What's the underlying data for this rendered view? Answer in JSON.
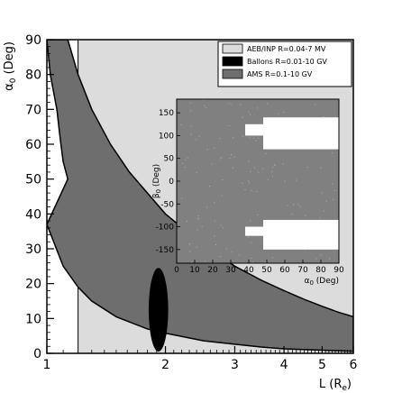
{
  "chart_data": {
    "type": "area",
    "x_scale": "log",
    "xlim": [
      1,
      6
    ],
    "ylim": [
      0,
      90
    ],
    "xlabel": "L (R",
    "xlabel_sub": "e",
    "xlabel_close": ")",
    "ylabel": "α",
    "ylabel_sub": "0",
    "ylabel_unit": " (Deg)",
    "x_ticks": [
      {
        "value": 1,
        "label": "1"
      },
      {
        "value": 2,
        "label": "2"
      },
      {
        "value": 3,
        "label": "3"
      },
      {
        "value": 4,
        "label": "4"
      },
      {
        "value": 5,
        "label": "5"
      },
      {
        "value": 6,
        "label": "6"
      }
    ],
    "y_ticks": [
      {
        "value": 0,
        "label": "0"
      },
      {
        "value": 10,
        "label": "10"
      },
      {
        "value": 20,
        "label": "20"
      },
      {
        "value": 30,
        "label": "30"
      },
      {
        "value": 40,
        "label": "40"
      },
      {
        "value": 50,
        "label": "50"
      },
      {
        "value": 60,
        "label": "60"
      },
      {
        "value": 70,
        "label": "70"
      },
      {
        "value": 80,
        "label": "80"
      },
      {
        "value": 90,
        "label": "90"
      }
    ],
    "colors": {
      "aeb": "#dcdcdc",
      "balloons": "#000000",
      "ams": "#6e6e6e",
      "background": "#ffffff"
    },
    "series": [
      {
        "name": "AEB/INP R=0.04-7 MV",
        "kind": "band",
        "x_from": 1.2,
        "x_to": 6,
        "y_from": 0,
        "y_to": 90
      },
      {
        "name": "AMS      R=0.1-10 GV",
        "kind": "band_between_curves",
        "upper": [
          [
            1.13,
            90
          ],
          [
            1.2,
            80
          ],
          [
            1.3,
            70
          ],
          [
            1.45,
            60
          ],
          [
            1.62,
            52
          ],
          [
            1.8,
            46
          ],
          [
            2,
            40
          ],
          [
            2.5,
            31
          ],
          [
            3,
            25
          ],
          [
            3.5,
            21
          ],
          [
            4,
            18
          ],
          [
            4.5,
            15.5
          ],
          [
            5,
            13.5
          ],
          [
            5.5,
            11.8
          ],
          [
            6,
            10.5
          ]
        ],
        "lower": [
          [
            1,
            37
          ],
          [
            1.1,
            25
          ],
          [
            1.2,
            19
          ],
          [
            1.3,
            15
          ],
          [
            1.5,
            10.5
          ],
          [
            1.8,
            7
          ],
          [
            2,
            5.8
          ],
          [
            2.5,
            3.6
          ],
          [
            3,
            2.6
          ],
          [
            3.5,
            1.8
          ],
          [
            4,
            1.3
          ],
          [
            5,
            0.9
          ],
          [
            6,
            0.6
          ]
        ],
        "upper_inner_edge": [
          [
            1,
            90
          ],
          [
            1.02,
            80
          ],
          [
            1.06,
            70
          ],
          [
            1.08,
            62
          ],
          [
            1.1,
            55
          ],
          [
            1.13,
            50
          ]
        ]
      },
      {
        "name": "Ballons R=0.01-10 GV",
        "kind": "ellipse",
        "cx": 1.92,
        "cy": 12.5,
        "x_half_width_log": 0.057,
        "y_half_height": 12
      }
    ],
    "legend": {
      "position": "top-right",
      "entries": [
        {
          "label": "AEB/INP R=0.04-7 MV",
          "color": "#dcdcdc"
        },
        {
          "label": "Ballons  R=0.01-10 GV",
          "color": "#000000"
        },
        {
          "label": "AMS      R=0.1-10 GV",
          "color": "#6e6e6e"
        }
      ]
    },
    "inset": {
      "type": "heatmap",
      "xlabel": "α",
      "xlabel_sub": "0",
      "xlabel_unit": " (Deg)",
      "ylabel": "β",
      "ylabel_sub": "0",
      "ylabel_unit": " (Deg)",
      "xlim": [
        0,
        90
      ],
      "ylim": [
        -180,
        180
      ],
      "x_ticks": [
        "0",
        "10",
        "20",
        "30",
        "40",
        "50",
        "60",
        "70",
        "80",
        "90"
      ],
      "y_ticks": [
        "-150",
        "-100",
        "-50",
        "0",
        "50",
        "100",
        "150"
      ],
      "excluded_regions": [
        {
          "alpha_from": 38,
          "alpha_to": 48,
          "beta_from": 100,
          "beta_to": 125
        },
        {
          "alpha_from": 48,
          "alpha_to": 90,
          "beta_from": 70,
          "beta_to": 140
        },
        {
          "alpha_from": 38,
          "alpha_to": 48,
          "beta_from": -120,
          "beta_to": -100
        },
        {
          "alpha_from": 48,
          "alpha_to": 90,
          "beta_from": -150,
          "beta_to": -85
        }
      ]
    }
  }
}
